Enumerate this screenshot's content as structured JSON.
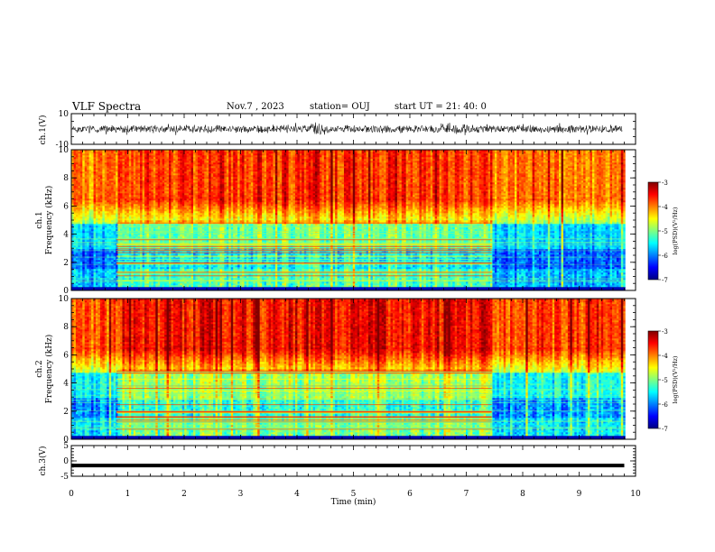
{
  "header": {
    "title": "VLF Spectra",
    "date": "Nov.7 , 2023",
    "station": "station= OUJ",
    "start": "start UT = 21: 40: 0"
  },
  "chart_data": [
    {
      "type": "line",
      "name": "ch1-waveform",
      "ylabel": "ch.1(V)",
      "ylim": [
        -10,
        10
      ],
      "yticklabels": [
        "10",
        "-10"
      ],
      "xlim": [
        0,
        10
      ],
      "description_series": "broadband noise waveform, amplitude roughly ±4 V around 0"
    },
    {
      "type": "heatmap",
      "name": "ch1-spectrogram",
      "ylabel_line1": "ch.1",
      "ylabel_line2": "Frequency (kHz)",
      "ylim": [
        0,
        10
      ],
      "yticks": [
        0,
        2,
        4,
        6,
        8,
        10
      ],
      "xlim": [
        0,
        10
      ],
      "colorbar": {
        "label": "log(PSD)(V²/Hz)",
        "range": [
          -7,
          -3
        ],
        "ticks": [
          "-3",
          "-4",
          "-5",
          "-6",
          "-7"
        ]
      },
      "segments": [
        {
          "x": [
            0,
            0.8
          ],
          "regime": "quiet"
        },
        {
          "x": [
            0.8,
            7.45
          ],
          "regime": "active-lines"
        },
        {
          "x": [
            7.45,
            9.8
          ],
          "regime": "quiet"
        }
      ]
    },
    {
      "type": "heatmap",
      "name": "ch2-spectrogram",
      "ylabel_line1": "ch.2",
      "ylabel_line2": "Frequency (kHz)",
      "ylim": [
        0,
        10
      ],
      "yticks": [
        0,
        2,
        4,
        6,
        8,
        10
      ],
      "xlim": [
        0,
        10
      ],
      "colorbar": {
        "label": "log(PSD)(V²/Hz)",
        "range": [
          -7,
          -3
        ],
        "ticks": [
          "-3",
          "-4",
          "-5",
          "-6",
          "-7"
        ]
      },
      "segments": [
        {
          "x": [
            0,
            0.8
          ],
          "regime": "quiet"
        },
        {
          "x": [
            0.8,
            7.45
          ],
          "regime": "active-lines"
        },
        {
          "x": [
            7.45,
            9.8
          ],
          "regime": "quiet"
        }
      ]
    },
    {
      "type": "line",
      "name": "ch3-waveform",
      "ylabel": "ch.3(V)",
      "ylim": [
        -5,
        5
      ],
      "yticks": [
        5,
        0,
        -5
      ],
      "yticklabels": [
        "5",
        "0",
        "-5"
      ],
      "xlim": [
        0,
        10
      ],
      "x": [
        0,
        9.8
      ],
      "y": [
        -1.5,
        -1.5
      ]
    }
  ],
  "xaxis": {
    "label": "Time (min)",
    "ticks": [
      0,
      1,
      2,
      3,
      4,
      5,
      6,
      7,
      8,
      9,
      10
    ],
    "ticklabels": [
      "0",
      "1",
      "2",
      "3",
      "4",
      "5",
      "6",
      "7",
      "8",
      "9",
      "10"
    ]
  },
  "colors": {
    "waveform": "#000000",
    "cmap": [
      "#000080",
      "#0000ff",
      "#0080ff",
      "#00ffff",
      "#80ff80",
      "#ffff00",
      "#ff8000",
      "#ff0000",
      "#800000"
    ]
  }
}
